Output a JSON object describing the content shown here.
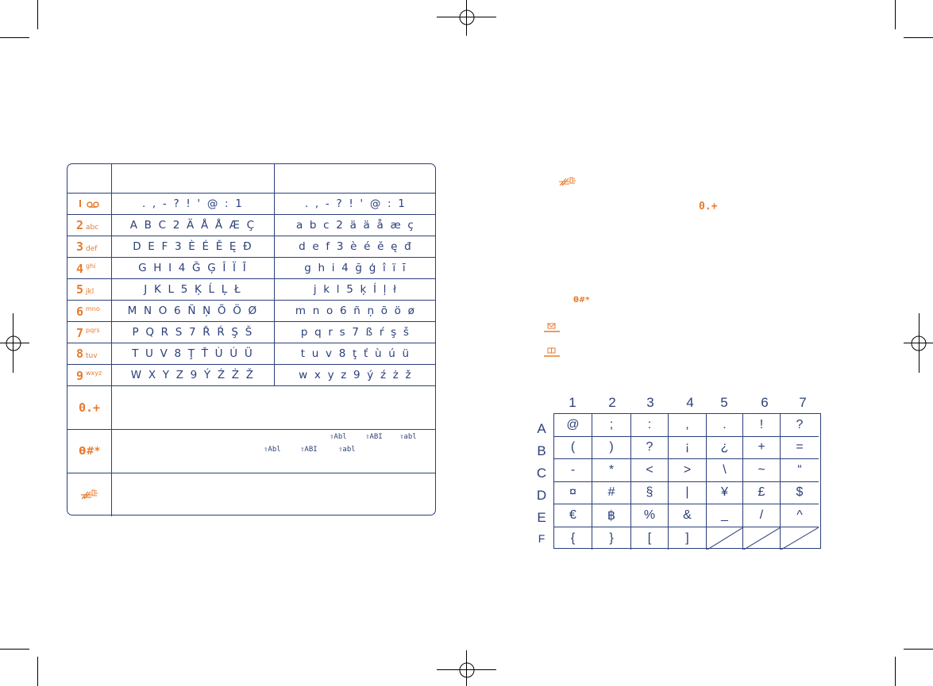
{
  "key_table": {
    "rows": [
      {
        "key": "1",
        "key_icon": "voicemail-icon",
        "upper": ". , - ? ! ' @ : 1",
        "lower": ". , - ? ! ' @ : 1"
      },
      {
        "key": "2",
        "sub": "abc",
        "upper": "A B C 2 Ä Å Å Æ Ç",
        "lower": "a b c 2 ä ä å æ ç"
      },
      {
        "key": "3",
        "sub": "def",
        "upper": "D E F 3 È É Ě Ę Đ",
        "lower": "d e f 3 è é ě ę đ"
      },
      {
        "key": "4",
        "sub": "ghi",
        "upper": "G H I 4 Ğ Ģ Î Ï Ī",
        "lower": "g h i 4 ğ ģ î ï ī"
      },
      {
        "key": "5",
        "sub": "jkl",
        "upper": "J K L 5 Ķ Ĺ Ļ Ł",
        "lower": "j k l 5 ķ Í ļ ł"
      },
      {
        "key": "6",
        "sub": "mno",
        "upper": "M N O 6 Ñ Ņ Õ Ö Ø",
        "lower": "m n o 6 ñ ņ õ ö ø"
      },
      {
        "key": "7",
        "sub": "pqrs",
        "upper": "P Q R S 7 Ř Ŕ Ş Š",
        "lower": "p q r s 7 ß ŕ ş š"
      },
      {
        "key": "8",
        "sub": "tuv",
        "upper": "T U V 8 Ţ Ť Ù Ú Ü",
        "lower": "t u v 8 ţ ť ù ú ü"
      },
      {
        "key": "9",
        "sub": "wxyz",
        "upper": "W X Y Z 9 Ý Ź Ż Ž",
        "lower": "w x y z 9 ý ź ż ž"
      }
    ],
    "zero_key": "0.+",
    "hash_key": "θ#*",
    "mode_icons_row1": [
      "⇧Abl",
      "⇧ABI",
      "⇧abl"
    ],
    "mode_icons_row2": [
      "⇧Abl",
      "⇧ABI",
      "⇧abl"
    ]
  },
  "symbol_grid": {
    "columns": [
      "1",
      "2",
      "3",
      "4",
      "5",
      "6",
      "7"
    ],
    "rows": [
      "A",
      "B",
      "C",
      "D",
      "E",
      "F"
    ],
    "cells": [
      [
        "@",
        ";",
        ":",
        ",",
        ".",
        "!",
        "?"
      ],
      [
        "(",
        ")",
        "?",
        "¡",
        "¿",
        "+",
        "="
      ],
      [
        "-",
        "*",
        "<",
        ">",
        "\\",
        "~",
        "“"
      ],
      [
        "¤",
        "#",
        "§",
        "|",
        "¥",
        "£",
        "$"
      ],
      [
        "€",
        "฿",
        "%",
        "&",
        "_",
        "/",
        "^"
      ],
      [
        "{",
        "}",
        "[",
        "]",
        "",
        "",
        ""
      ]
    ]
  },
  "colors": {
    "ink": "#2b3f7a",
    "accent": "#e87a2e"
  }
}
